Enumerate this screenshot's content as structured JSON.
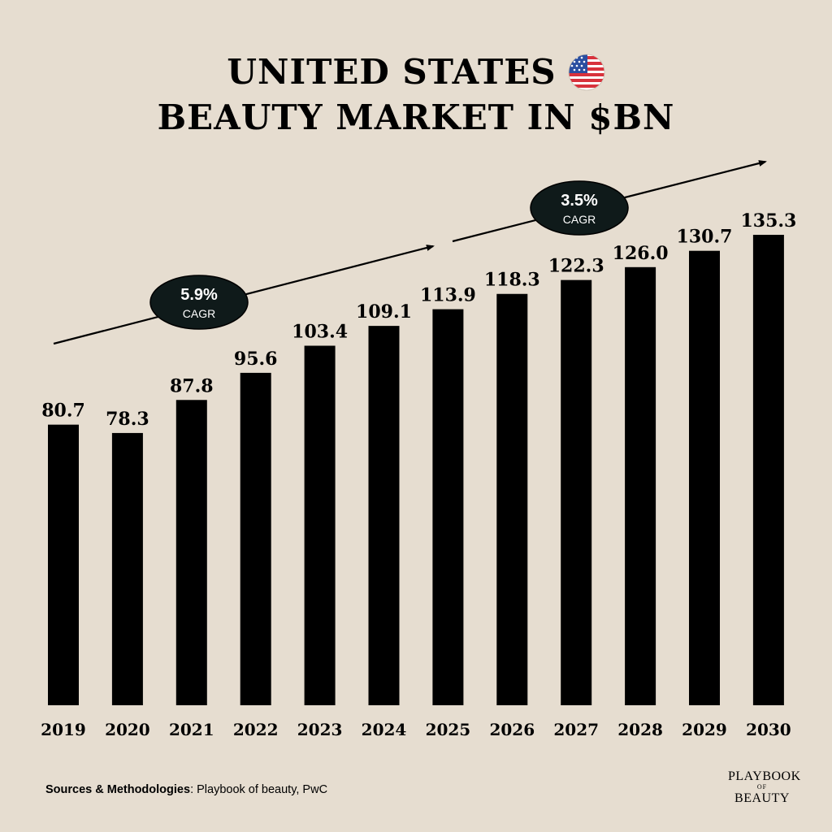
{
  "title": {
    "line1": "UNITED STATES",
    "line2": "BEAUTY MARKET IN $BN",
    "flag_icon": "us-flag-icon"
  },
  "chart_data": {
    "type": "bar",
    "categories": [
      "2019",
      "2020",
      "2021",
      "2022",
      "2023",
      "2024",
      "2025",
      "2026",
      "2027",
      "2028",
      "2029",
      "2030"
    ],
    "values": [
      80.7,
      78.3,
      87.8,
      95.6,
      103.4,
      109.1,
      113.9,
      118.3,
      122.3,
      126.0,
      130.7,
      135.3
    ],
    "value_labels": [
      "80.7",
      "78.3",
      "87.8",
      "95.6",
      "103.4",
      "109.1",
      "113.9",
      "118.3",
      "122.3",
      "126.0",
      "130.7",
      "135.3"
    ],
    "title": "UNITED STATES BEAUTY MARKET IN $BN",
    "xlabel": "",
    "ylabel": "",
    "ylim": [
      0,
      135.3
    ],
    "grid": false,
    "bar_color": "#000000",
    "annotations": [
      {
        "value": "5.9%",
        "label": "CAGR",
        "from": "2019",
        "to": "2025"
      },
      {
        "value": "3.5%",
        "label": "CAGR",
        "from": "2025",
        "to": "2030"
      }
    ]
  },
  "footer": {
    "sources_label": "Sources & Methodologies",
    "sources_text": ": Playbook of beauty, PwC"
  },
  "logo": {
    "line1": "PLAYBOOK",
    "line2": "OF",
    "line3": "BEAUTY"
  },
  "colors": {
    "background": "#e6ddd0",
    "bars": "#000000",
    "badge_fill": "#0f1a1a",
    "flag_red": "#d8323c",
    "flag_blue": "#2a4ea0"
  }
}
